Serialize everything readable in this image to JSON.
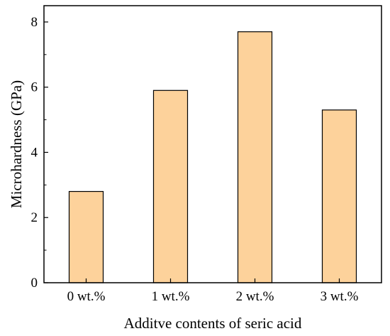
{
  "chart_data": {
    "type": "bar",
    "title": "",
    "xlabel": "Additve contents of seric acid",
    "ylabel": "Microhardness (GPa)",
    "categories": [
      "0 wt.%",
      "1 wt.%",
      "2 wt.%",
      "3 wt.%"
    ],
    "values": [
      2.8,
      5.9,
      7.7,
      5.3
    ],
    "ylim": [
      0,
      8.5
    ],
    "yticks": [
      0,
      2,
      4,
      6,
      8
    ],
    "grid": false,
    "legend": "none",
    "colors": {
      "bar_fill": "#fdd29b",
      "bar_stroke": "#000000",
      "axis": "#000000"
    }
  }
}
